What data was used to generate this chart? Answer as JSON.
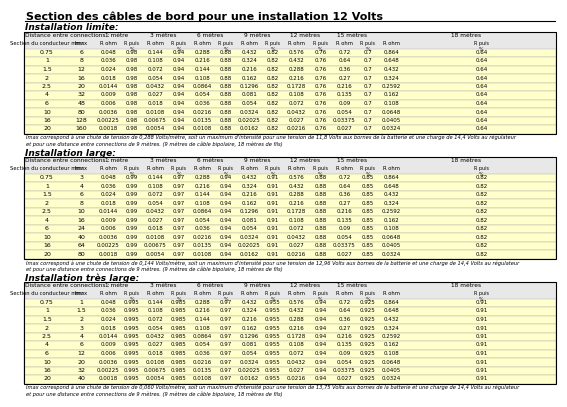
{
  "title": "Section des câbles de bord pour une installation 12 Volts",
  "sections_limite": {
    "title": "Installation limite:",
    "note": "Imax correspond à une chute de tension de 0,288 Volts/mètre, soit un maximum d'intensité pour une tension de 11,8 Volts aux bornes de la batterie et une charge de 14,4 Volts au régulateur\net pour une distance entre connections de 9 mètres. (9 mètres de câble bipolaire, 18 mètres de fils)",
    "rows": [
      [
        0.75,
        6,
        0.048,
        0.98,
        0.144,
        0.94,
        0.288,
        0.88,
        0.432,
        0.82,
        0.576,
        0.76,
        0.72,
        0.7,
        0.864,
        0.64
      ],
      [
        1,
        8,
        0.036,
        0.98,
        0.108,
        0.94,
        0.216,
        0.88,
        0.324,
        0.82,
        0.432,
        0.76,
        0.64,
        0.7,
        0.648,
        0.64
      ],
      [
        1.5,
        12,
        0.024,
        0.98,
        0.072,
        0.94,
        0.144,
        0.88,
        0.216,
        0.82,
        0.288,
        0.76,
        0.36,
        0.7,
        0.432,
        0.64
      ],
      [
        2,
        16,
        0.018,
        0.98,
        0.054,
        0.94,
        0.108,
        0.88,
        0.162,
        0.82,
        0.216,
        0.76,
        0.27,
        0.7,
        0.324,
        0.64
      ],
      [
        2.5,
        20,
        0.0144,
        0.98,
        0.0432,
        0.94,
        0.0864,
        0.88,
        0.1296,
        0.82,
        0.1728,
        0.76,
        0.216,
        0.7,
        0.2592,
        0.64
      ],
      [
        4,
        32,
        0.009,
        0.98,
        0.027,
        0.94,
        0.054,
        0.88,
        0.081,
        0.82,
        0.108,
        0.76,
        0.135,
        0.7,
        0.162,
        0.64
      ],
      [
        6,
        48,
        0.006,
        0.98,
        0.018,
        0.94,
        0.036,
        0.88,
        0.054,
        0.82,
        0.072,
        0.76,
        0.09,
        0.7,
        0.108,
        0.64
      ],
      [
        10,
        80,
        0.0036,
        0.98,
        0.0108,
        0.94,
        0.0216,
        0.88,
        0.0324,
        0.82,
        0.0432,
        0.76,
        0.054,
        0.7,
        0.0648,
        0.64
      ],
      [
        16,
        128,
        0.00225,
        0.98,
        0.00675,
        0.94,
        0.0135,
        0.88,
        0.02025,
        0.82,
        0.027,
        0.76,
        0.03375,
        0.7,
        0.0405,
        0.64
      ],
      [
        20,
        160,
        0.0018,
        0.98,
        0.0054,
        0.94,
        0.0108,
        0.88,
        0.0162,
        0.82,
        0.0216,
        0.76,
        0.027,
        0.7,
        0.0324,
        0.64
      ]
    ]
  },
  "sections_large": {
    "title": "Installation large:",
    "note": "Imax correspond à une chute de tension de 0,144 Volts/mètre, soit un maximum d'intensité pour une tension de 12,96 Volts aux bornes de la batterie et une charge de 14,4 Volts au régulateur\net pour une distance entre connections de 9 mètres. (9 mètres de câble bipolaire, 18 mètres de fils)",
    "rows": [
      [
        0.75,
        3,
        0.048,
        0.99,
        0.144,
        0.97,
        0.288,
        0.94,
        0.432,
        0.91,
        0.576,
        0.88,
        0.72,
        0.85,
        0.864,
        0.82
      ],
      [
        1,
        4,
        0.036,
        0.99,
        0.108,
        0.97,
        0.216,
        0.94,
        0.324,
        0.91,
        0.432,
        0.88,
        0.64,
        0.85,
        0.648,
        0.82
      ],
      [
        1.5,
        6,
        0.024,
        0.99,
        0.072,
        0.97,
        0.144,
        0.94,
        0.216,
        0.91,
        0.288,
        0.88,
        0.36,
        0.85,
        0.432,
        0.82
      ],
      [
        2,
        8,
        0.018,
        0.99,
        0.054,
        0.97,
        0.108,
        0.94,
        0.162,
        0.91,
        0.216,
        0.88,
        0.27,
        0.85,
        0.324,
        0.82
      ],
      [
        2.5,
        10,
        0.0144,
        0.99,
        0.0432,
        0.97,
        0.0864,
        0.94,
        0.1296,
        0.91,
        0.1728,
        0.88,
        0.216,
        0.85,
        0.2592,
        0.82
      ],
      [
        4,
        16,
        0.009,
        0.99,
        0.027,
        0.97,
        0.054,
        0.94,
        0.081,
        0.91,
        0.108,
        0.88,
        0.135,
        0.85,
        0.162,
        0.82
      ],
      [
        6,
        24,
        0.006,
        0.99,
        0.018,
        0.97,
        0.036,
        0.94,
        0.054,
        0.91,
        0.072,
        0.88,
        0.09,
        0.85,
        0.108,
        0.82
      ],
      [
        10,
        40,
        0.0036,
        0.99,
        0.0108,
        0.97,
        0.0216,
        0.94,
        0.0324,
        0.91,
        0.0432,
        0.88,
        0.054,
        0.85,
        0.0648,
        0.82
      ],
      [
        16,
        64,
        0.00225,
        0.99,
        0.00675,
        0.97,
        0.0135,
        0.94,
        0.02025,
        0.91,
        0.027,
        0.88,
        0.03375,
        0.85,
        0.0405,
        0.82
      ],
      [
        20,
        80,
        0.0018,
        0.99,
        0.0054,
        0.97,
        0.0108,
        0.94,
        0.0162,
        0.91,
        0.0216,
        0.88,
        0.027,
        0.85,
        0.0324,
        0.82
      ]
    ]
  },
  "sections_tres_large": {
    "title": "Installation très large:",
    "note": "Imax correspond à une chute de tension de 0,060 Volts/mètre, soit un maximum d'intensité pour une tension de 13,75 Volts aux bornes de la batterie et une charge de 14,4 Volts au régulateur\net pour une distance entre connections de 9 mètres. (9 mètres de câble bipolaire, 18 mètres de fils)",
    "rows": [
      [
        0.75,
        1,
        0.048,
        0.995,
        0.144,
        0.985,
        0.288,
        0.97,
        0.432,
        0.955,
        0.576,
        0.94,
        0.72,
        0.925,
        0.864,
        0.91
      ],
      [
        1,
        1.5,
        0.036,
        0.995,
        0.108,
        0.985,
        0.216,
        0.97,
        0.324,
        0.955,
        0.432,
        0.94,
        0.64,
        0.925,
        0.648,
        0.91
      ],
      [
        1.5,
        2,
        0.024,
        0.995,
        0.072,
        0.985,
        0.144,
        0.97,
        0.216,
        0.955,
        0.288,
        0.94,
        0.36,
        0.925,
        0.432,
        0.91
      ],
      [
        2,
        3,
        0.018,
        0.995,
        0.054,
        0.985,
        0.108,
        0.97,
        0.162,
        0.955,
        0.216,
        0.94,
        0.27,
        0.925,
        0.324,
        0.91
      ],
      [
        2.5,
        4,
        0.0144,
        0.995,
        0.0432,
        0.985,
        0.0864,
        0.97,
        0.1296,
        0.955,
        0.1728,
        0.94,
        0.216,
        0.925,
        0.2592,
        0.91
      ],
      [
        4,
        6,
        0.009,
        0.995,
        0.027,
        0.985,
        0.054,
        0.97,
        0.081,
        0.955,
        0.108,
        0.94,
        0.135,
        0.925,
        0.162,
        0.91
      ],
      [
        6,
        12,
        0.006,
        0.995,
        0.018,
        0.985,
        0.036,
        0.97,
        0.054,
        0.955,
        0.072,
        0.94,
        0.09,
        0.925,
        0.108,
        0.91
      ],
      [
        10,
        20,
        0.0036,
        0.995,
        0.0108,
        0.985,
        0.0216,
        0.97,
        0.0324,
        0.955,
        0.0432,
        0.94,
        0.054,
        0.925,
        0.0648,
        0.91
      ],
      [
        16,
        32,
        0.00225,
        0.995,
        0.00675,
        0.985,
        0.0135,
        0.97,
        0.02025,
        0.955,
        0.027,
        0.94,
        0.03375,
        0.925,
        0.0405,
        0.91
      ],
      [
        20,
        40,
        0.0018,
        0.995,
        0.0054,
        0.985,
        0.0108,
        0.97,
        0.0162,
        0.955,
        0.0216,
        0.94,
        0.027,
        0.925,
        0.0324,
        0.91
      ]
    ]
  },
  "bg_yellow": "#FFFFCC",
  "bg_white": "#FFFFFF",
  "header_bg": "#e8e8e8"
}
